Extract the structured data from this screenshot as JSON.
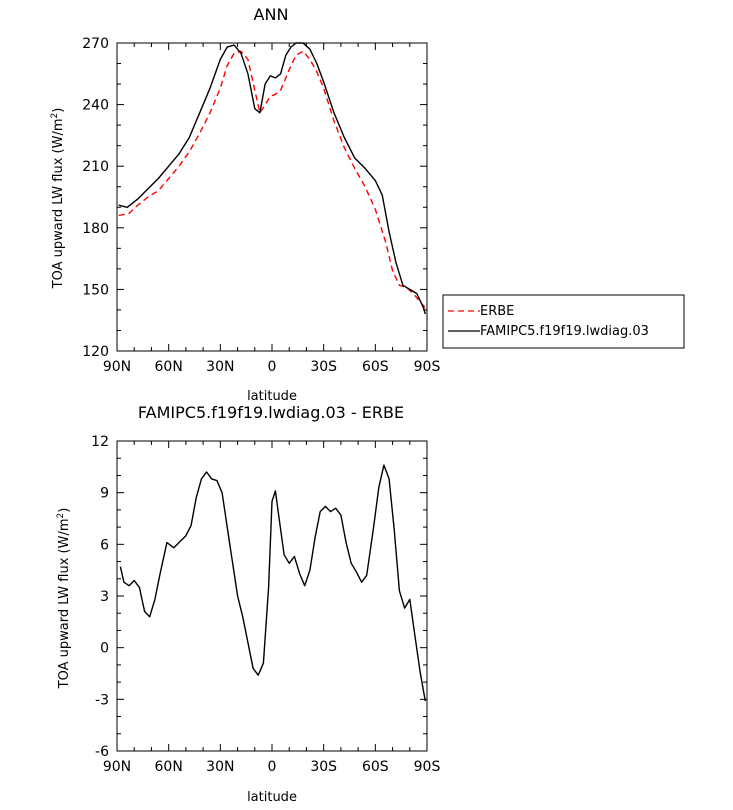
{
  "chart_data": [
    {
      "type": "line",
      "title": "ANN",
      "xlabel": "latitude",
      "ylabel": "TOA upward LW flux (W/m",
      "ylabel_sup": "2",
      "ylabel_end": ")",
      "xlim": [
        -90,
        90
      ],
      "ylim": [
        120,
        270
      ],
      "x_ticks": [
        -90,
        -60,
        -30,
        0,
        30,
        60,
        90
      ],
      "x_tick_labels": [
        "90N",
        "60N",
        "30N",
        "0",
        "30S",
        "60S",
        "90S"
      ],
      "y_ticks": [
        120,
        150,
        180,
        210,
        240,
        270
      ],
      "y_tick_labels": [
        "120",
        "150",
        "180",
        "210",
        "240",
        "270"
      ],
      "legend": "right",
      "series": [
        {
          "name": "ERBE",
          "color": "#ff0000",
          "dash": "dashed",
          "x": [
            -89,
            -83,
            -78,
            -72,
            -66,
            -60,
            -54,
            -48,
            -42,
            -36,
            -30,
            -26,
            -22,
            -18,
            -14,
            -10,
            -7,
            -4,
            -1,
            2,
            5,
            8,
            11,
            14,
            18,
            22,
            26,
            30,
            36,
            42,
            48,
            54,
            60,
            66,
            70,
            74,
            78,
            82,
            86,
            89
          ],
          "y": [
            186,
            187,
            191,
            195,
            198,
            204,
            210,
            217,
            226,
            236,
            248,
            259,
            265,
            266,
            262,
            247,
            236,
            240,
            244,
            245,
            247,
            253,
            259,
            264,
            266,
            262,
            256,
            248,
            232,
            219,
            209,
            200,
            189,
            173,
            159,
            152,
            151,
            148,
            144,
            141
          ]
        },
        {
          "name": "FAMIPC5.f19f19.lwdiag.03",
          "color": "#000000",
          "dash": "solid",
          "x": [
            -89,
            -84,
            -78,
            -72,
            -66,
            -60,
            -54,
            -48,
            -42,
            -36,
            -30,
            -26,
            -22,
            -18,
            -14,
            -10,
            -7,
            -4,
            -1,
            2,
            5,
            8,
            11,
            14,
            18,
            22,
            26,
            30,
            36,
            42,
            48,
            54,
            60,
            64,
            68,
            72,
            76,
            80,
            84,
            88,
            89
          ],
          "y": [
            191,
            190,
            194,
            199,
            204,
            210,
            216,
            224,
            236,
            248,
            262,
            268,
            269,
            265,
            255,
            238,
            236,
            250,
            254,
            253,
            255,
            264,
            268,
            270,
            270,
            267,
            260,
            251,
            236,
            224,
            214,
            209,
            203,
            196,
            178,
            163,
            152,
            150,
            148,
            141,
            138
          ]
        }
      ]
    },
    {
      "type": "line",
      "title": "FAMIPC5.f19f19.lwdiag.03 - ERBE",
      "xlabel": "latitude",
      "ylabel": "TOA upward LW flux (W/m",
      "ylabel_sup": "2",
      "ylabel_end": ")",
      "xlim": [
        -90,
        90
      ],
      "ylim": [
        -6,
        12
      ],
      "x_ticks": [
        -90,
        -60,
        -30,
        0,
        30,
        60,
        90
      ],
      "x_tick_labels": [
        "90N",
        "60N",
        "30N",
        "0",
        "30S",
        "60S",
        "90S"
      ],
      "y_ticks": [
        -6,
        -3,
        0,
        3,
        6,
        9,
        12
      ],
      "y_tick_labels": [
        "-6",
        "-3",
        "0",
        "3",
        "6",
        "9",
        "12"
      ],
      "series": [
        {
          "color": "#000000",
          "dash": "solid",
          "x": [
            -88,
            -86,
            -83,
            -80,
            -77,
            -74,
            -71,
            -68,
            -65,
            -61,
            -57,
            -53,
            -50,
            -47,
            -44,
            -41,
            -38,
            -35,
            -32,
            -29,
            -26,
            -23,
            -20,
            -17,
            -14,
            -11,
            -8,
            -5,
            -2,
            0,
            2,
            4,
            7,
            10,
            13,
            16,
            19,
            22,
            25,
            28,
            31,
            34,
            37,
            40,
            43,
            46,
            49,
            52,
            55,
            59,
            62,
            65,
            68,
            71,
            74,
            77,
            80,
            83,
            86,
            89
          ],
          "y": [
            4.7,
            3.8,
            3.6,
            3.9,
            3.5,
            2.1,
            1.8,
            2.8,
            4.3,
            6.1,
            5.8,
            6.2,
            6.5,
            7.1,
            8.7,
            9.8,
            10.2,
            9.8,
            9.7,
            9.0,
            7.0,
            5.0,
            3.0,
            1.8,
            0.3,
            -1.2,
            -1.6,
            -0.9,
            3.5,
            8.5,
            9.1,
            7.6,
            5.4,
            4.9,
            5.3,
            4.3,
            3.6,
            4.5,
            6.4,
            7.9,
            8.2,
            7.9,
            8.1,
            7.7,
            6.1,
            4.9,
            4.4,
            3.8,
            4.2,
            7.0,
            9.3,
            10.6,
            9.8,
            6.8,
            3.3,
            2.3,
            2.8,
            0.7,
            -1.4,
            -3.1
          ]
        }
      ]
    }
  ]
}
